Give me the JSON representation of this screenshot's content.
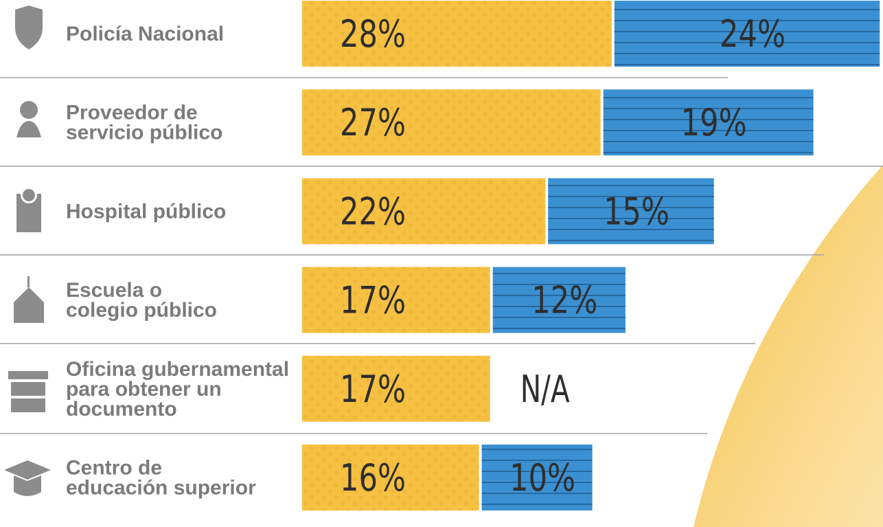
{
  "chart_data": {
    "type": "bar",
    "orientation": "horizontal",
    "stacked": true,
    "categories": [
      "Policía Nacional",
      "Proveedor de\nservicio público",
      "Hospital público",
      "Escuela o\ncolegio público",
      "Oficina gubernamental\npara obtener un\ndocumento",
      "Centro de\neducación superior"
    ],
    "series": [
      {
        "color": "#f6c142",
        "values": [
          28,
          27,
          22,
          17,
          17,
          16
        ],
        "value_labels": [
          "28%",
          "27%",
          "22%",
          "17%",
          "17%",
          "16%"
        ]
      },
      {
        "color": "#3b90d1",
        "values": [
          24,
          19,
          15,
          12,
          null,
          10
        ],
        "value_labels": [
          "24%",
          "19%",
          "15%",
          "12%",
          "N/A",
          "10%"
        ]
      }
    ]
  }
}
